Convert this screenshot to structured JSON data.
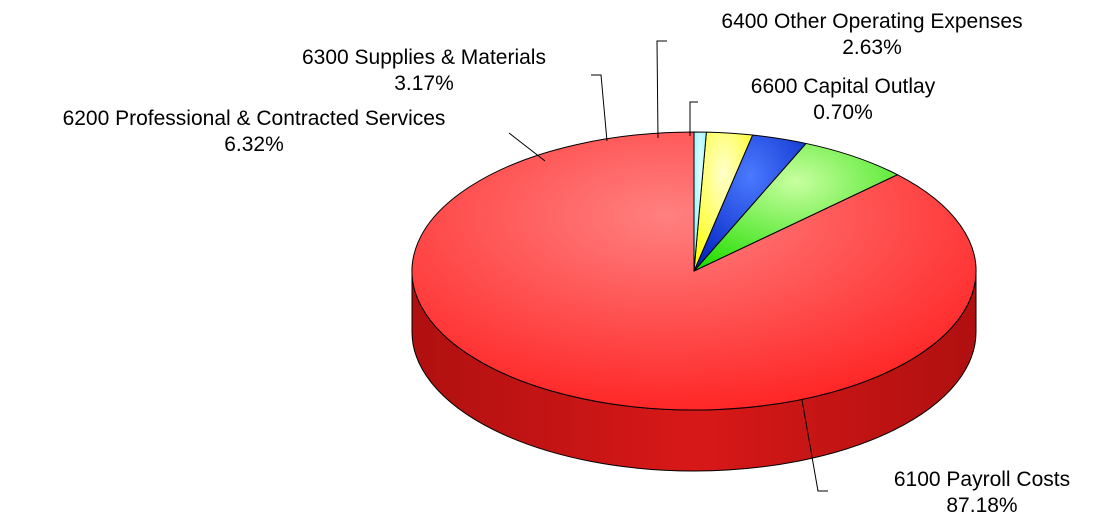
{
  "chart_data": {
    "type": "pie",
    "style": "3d",
    "title": "",
    "slices": [
      {
        "code": "6100",
        "name": "Payroll Costs",
        "label": "6100  Payroll Costs",
        "value": 87.18,
        "percent_label": "87.18%",
        "color": "#ff1a1a"
      },
      {
        "code": "6200",
        "name": "Professional & Contracted Services",
        "label": "6200  Professional & Contracted Services",
        "value": 6.32,
        "percent_label": "6.32%",
        "color": "#33ee11"
      },
      {
        "code": "6300",
        "name": "Supplies & Materials",
        "label": "6300  Supplies & Materials",
        "value": 3.17,
        "percent_label": "3.17%",
        "color": "#0a3ddd"
      },
      {
        "code": "6400",
        "name": "Other Operating Expenses",
        "label": "6400  Other Operating Expenses",
        "value": 2.63,
        "percent_label": "2.63%",
        "color": "#ffff33"
      },
      {
        "code": "6600",
        "name": "Capital Outlay",
        "label": "6600  Capital Outlay",
        "value": 0.7,
        "percent_label": "0.70%",
        "color": "#99ffff"
      }
    ]
  }
}
